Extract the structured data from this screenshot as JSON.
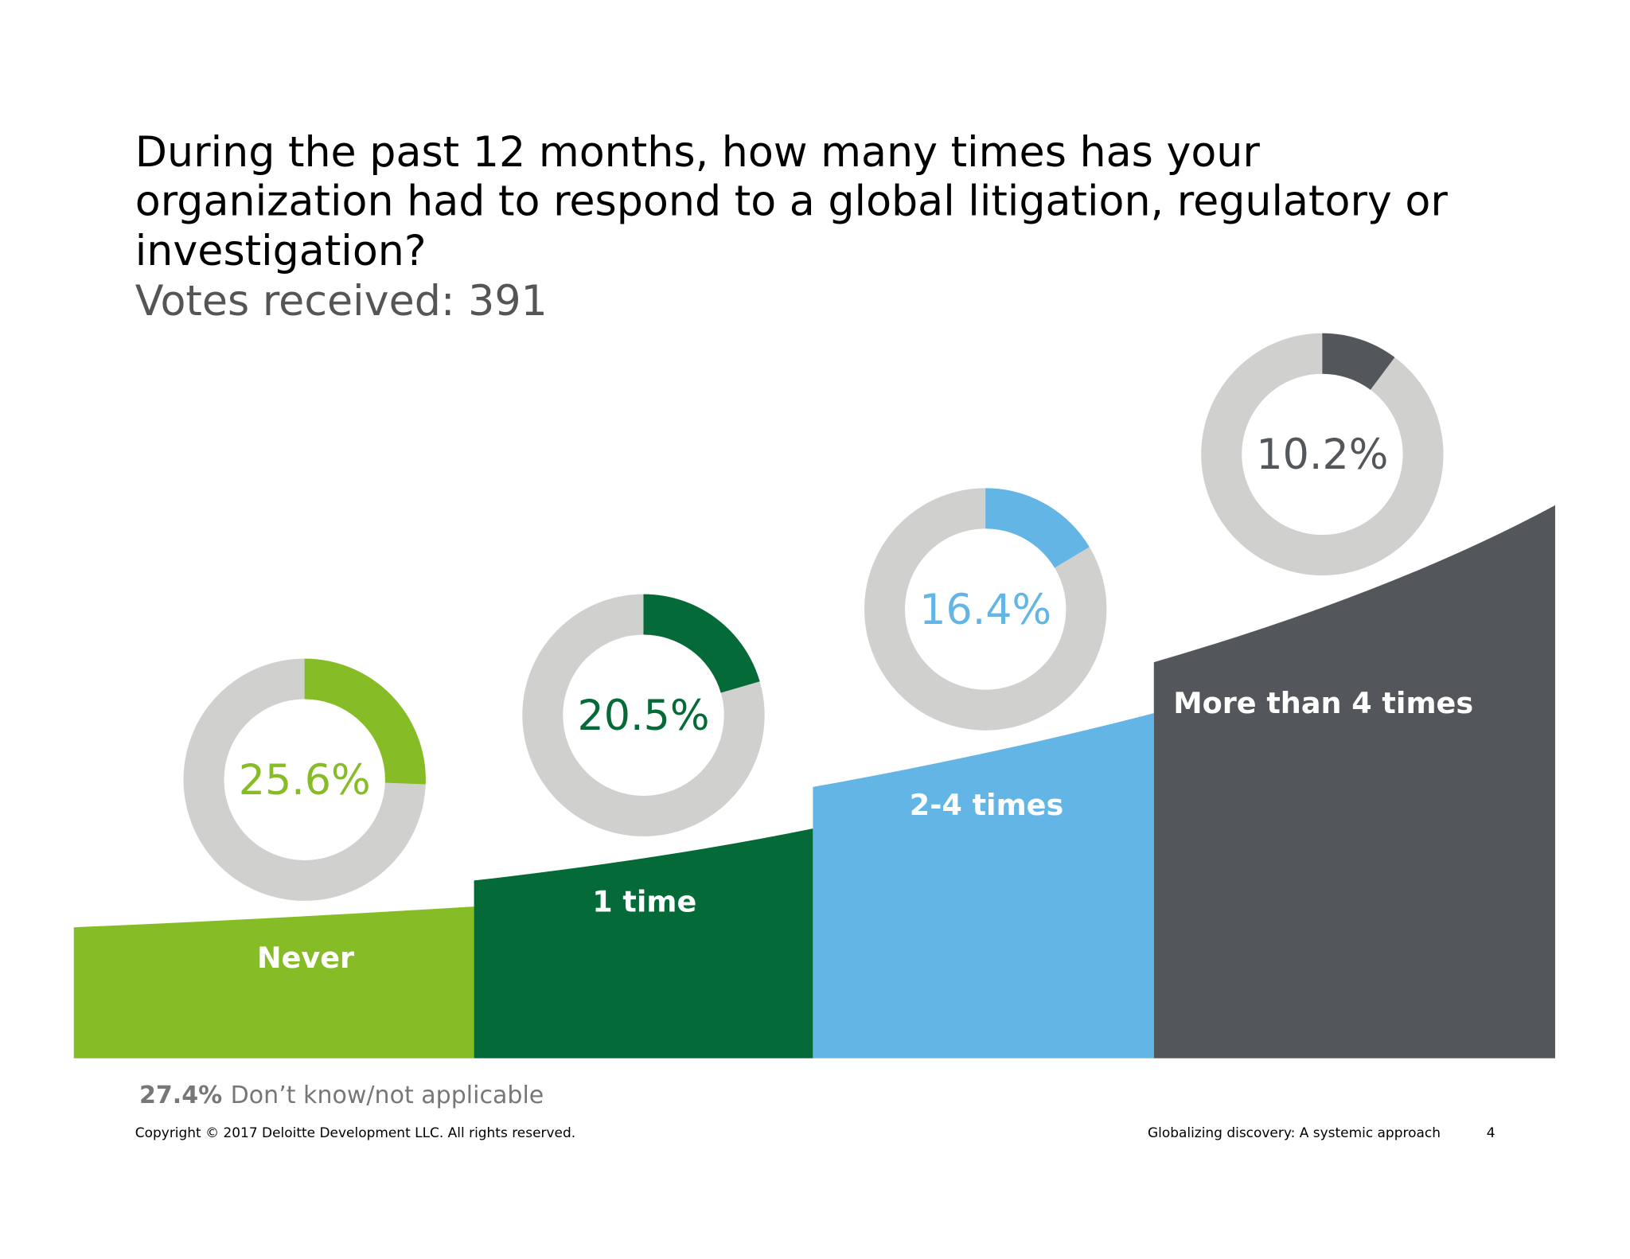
{
  "title_lines": [
    "During the past 12 months, how many times has your",
    "organization had to respond to a global litigation, regulatory or",
    "investigation?"
  ],
  "votes_label": "Votes received: 391",
  "chart_data": {
    "type": "pie",
    "title": "During the past 12 months, how many times has your organization had to respond to a global litigation, regulatory or investigation?",
    "subtitle": "Votes received: 391",
    "categories": [
      "Never",
      "1 time",
      "2-4 times",
      "More than 4 times"
    ],
    "values": [
      25.6,
      20.5,
      16.4,
      10.2
    ],
    "value_labels": [
      "25.6%",
      "20.5%",
      "16.4%",
      "10.2%"
    ],
    "colors": [
      "#86bc25",
      "#046a38",
      "#62b5e5",
      "#53565a"
    ],
    "ring_color": "#d0d0ce",
    "other": {
      "value": 27.4,
      "value_label": "27.4%",
      "label": "Don’t know/not applicable"
    }
  },
  "footer": {
    "copyright": "Copyright © 2017 Deloitte Development LLC. All rights reserved.",
    "doc_title": "Globalizing discovery: A systemic approach",
    "page_number": "4"
  }
}
